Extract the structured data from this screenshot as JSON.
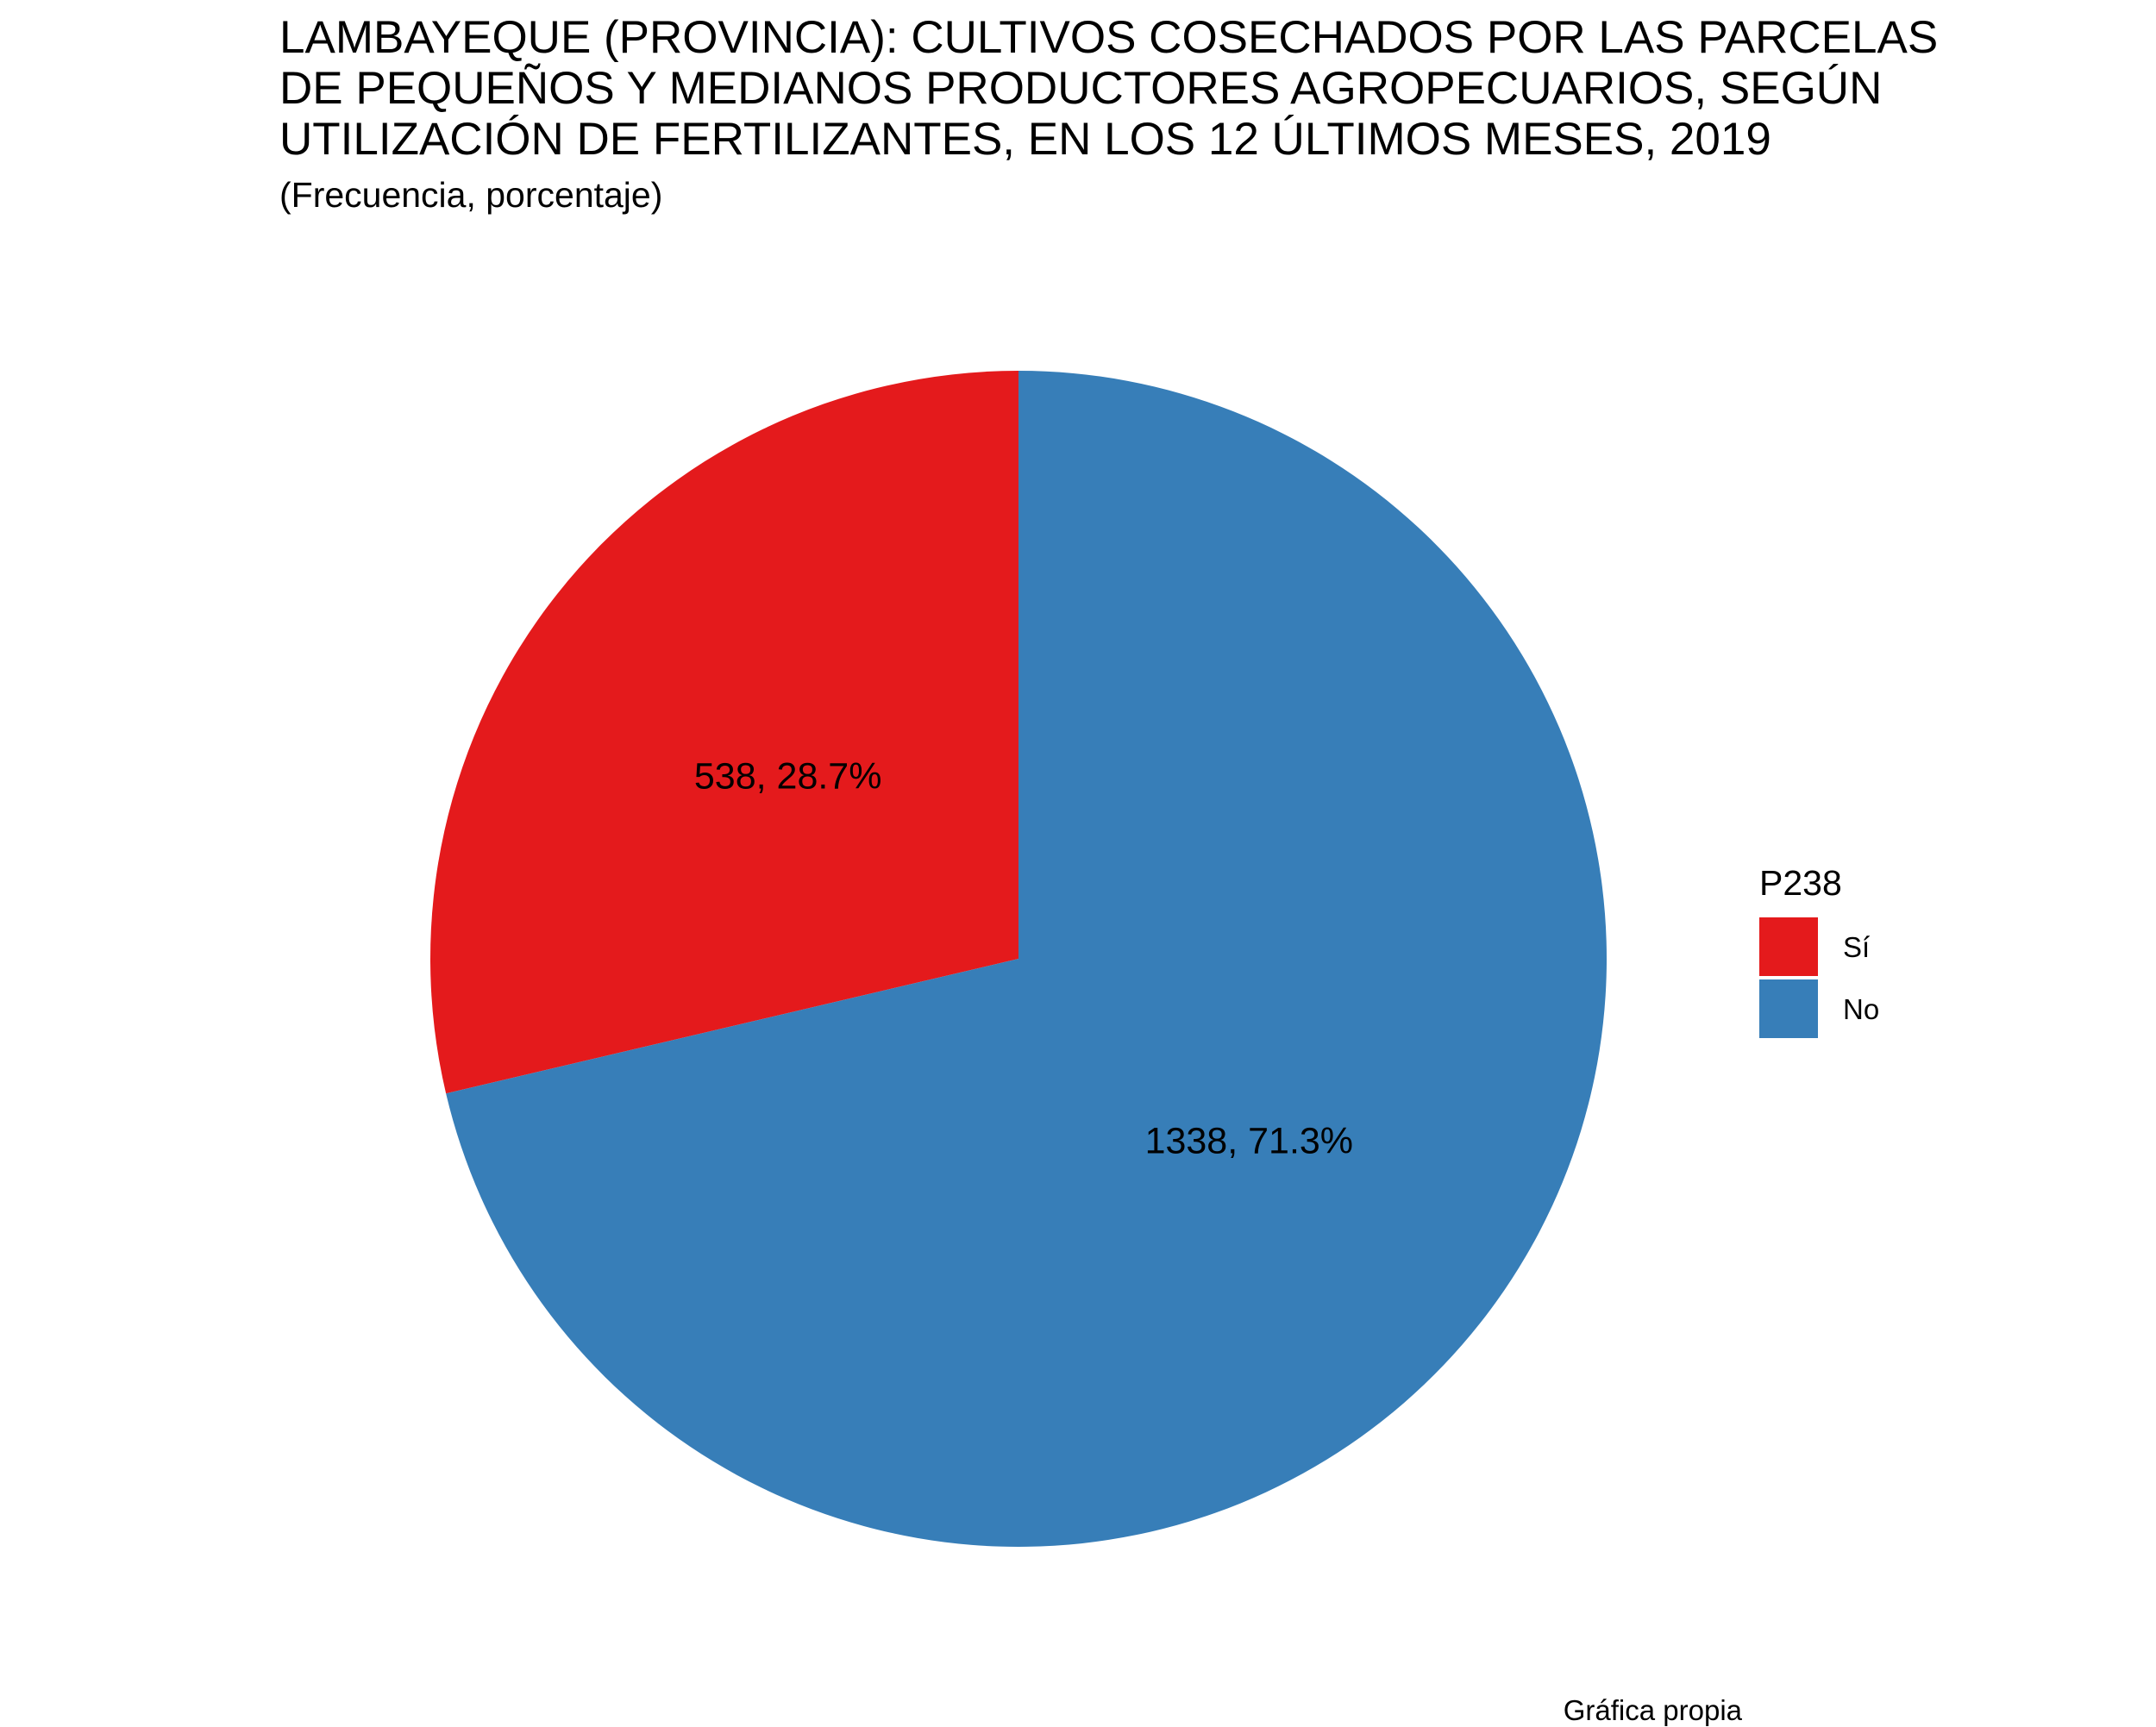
{
  "title_lines": [
    "LAMBAYEQUE (PROVINCIA): CULTIVOS COSECHADOS POR LAS PARCELAS",
    "DE PEQUEÑOS Y MEDIANOS PRODUCTORES AGROPECUARIOS, SEGÚN",
    "UTILIZACIÓN DE FERTILIZANTES, EN LOS 12 ÚLTIMOS MESES, 2019"
  ],
  "subtitle": "(Frecuencia, porcentaje)",
  "caption": "Gráfica propia",
  "legend": {
    "title": "P238",
    "items": [
      {
        "label": "Sí",
        "color": "#E41A1C"
      },
      {
        "label": "No",
        "color": "#377EB8"
      }
    ]
  },
  "chart_data": {
    "type": "pie",
    "title": "LAMBAYEQUE (PROVINCIA): CULTIVOS COSECHADOS POR LAS PARCELAS DE PEQUEÑOS Y MEDIANOS PRODUCTORES AGROPECUARIOS, SEGÚN UTILIZACIÓN DE FERTILIZANTES, EN LOS 12 ÚLTIMOS MESES, 2019",
    "subtitle": "(Frecuencia, porcentaje)",
    "legend_title": "P238",
    "legend_position": "right",
    "categories": [
      "Sí",
      "No"
    ],
    "values": [
      538,
      1338
    ],
    "percentages": [
      28.7,
      71.3
    ],
    "labels": [
      "538, 28.7%",
      "1338, 71.3%"
    ],
    "colors": [
      "#E41A1C",
      "#377EB8"
    ]
  }
}
